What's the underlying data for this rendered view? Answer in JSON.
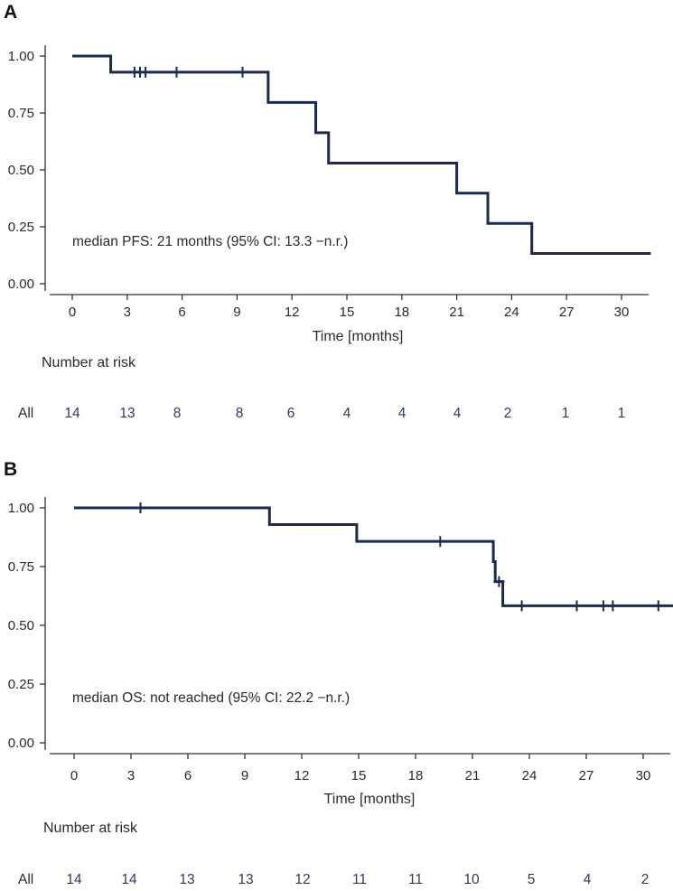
{
  "chart_data": [
    {
      "type": "line",
      "subtype": "kaplan-meier",
      "panel": "A",
      "xlabel": "Time [months]",
      "ylabel": "",
      "xlim": [
        -1,
        32
      ],
      "ylim": [
        0,
        1
      ],
      "x_ticks": [
        "0",
        "3",
        "6",
        "9",
        "12",
        "15",
        "18",
        "21",
        "24",
        "27",
        "30"
      ],
      "y_ticks": [
        "0.00",
        "0.25",
        "0.50",
        "0.75",
        "1.00"
      ],
      "annotation": "median PFS: 21 months (95% CI: 13.3 −n.r.)",
      "series": [
        {
          "name": "All",
          "steps": [
            {
              "x": 0,
              "y": 1.0
            },
            {
              "x": 2.1,
              "y": 0.929
            },
            {
              "x": 10.7,
              "y": 0.796
            },
            {
              "x": 13.3,
              "y": 0.663
            },
            {
              "x": 14.0,
              "y": 0.53
            },
            {
              "x": 21.0,
              "y": 0.398
            },
            {
              "x": 22.7,
              "y": 0.265
            },
            {
              "x": 25.1,
              "y": 0.133
            }
          ],
          "end_x": 31.6,
          "censored": [
            3.4,
            3.7,
            4.0,
            5.7,
            9.3
          ]
        }
      ],
      "risk_table": {
        "title": "Number at risk",
        "group": "All",
        "values": [
          "14",
          "13",
          "8",
          "8",
          "6",
          "4",
          "4",
          "4",
          "2",
          "1",
          "1"
        ]
      }
    },
    {
      "type": "line",
      "subtype": "kaplan-meier",
      "panel": "B",
      "xlabel": "Time [months]",
      "ylabel": "",
      "xlim": [
        -1,
        32
      ],
      "ylim": [
        0,
        1
      ],
      "x_ticks": [
        "0",
        "3",
        "6",
        "9",
        "12",
        "15",
        "18",
        "21",
        "24",
        "27",
        "30"
      ],
      "y_ticks": [
        "0.00",
        "0.25",
        "0.50",
        "0.75",
        "1.00"
      ],
      "annotation": "median OS: not reached (95% CI: 22.2 −n.r.)",
      "series": [
        {
          "name": "All",
          "steps": [
            {
              "x": 0,
              "y": 1.0
            },
            {
              "x": 10.3,
              "y": 0.929
            },
            {
              "x": 14.9,
              "y": 0.857
            },
            {
              "x": 22.1,
              "y": 0.771
            },
            {
              "x": 22.2,
              "y": 0.686
            },
            {
              "x": 22.6,
              "y": 0.583
            }
          ],
          "end_x": 32.0,
          "censored": [
            3.5,
            19.3,
            22.4,
            23.6,
            26.5,
            27.9,
            28.4,
            30.8
          ]
        }
      ],
      "risk_table": {
        "title": "Number at risk",
        "group": "All",
        "values": [
          "14",
          "14",
          "13",
          "13",
          "12",
          "11",
          "11",
          "10",
          "5",
          "4",
          "2"
        ]
      }
    }
  ]
}
